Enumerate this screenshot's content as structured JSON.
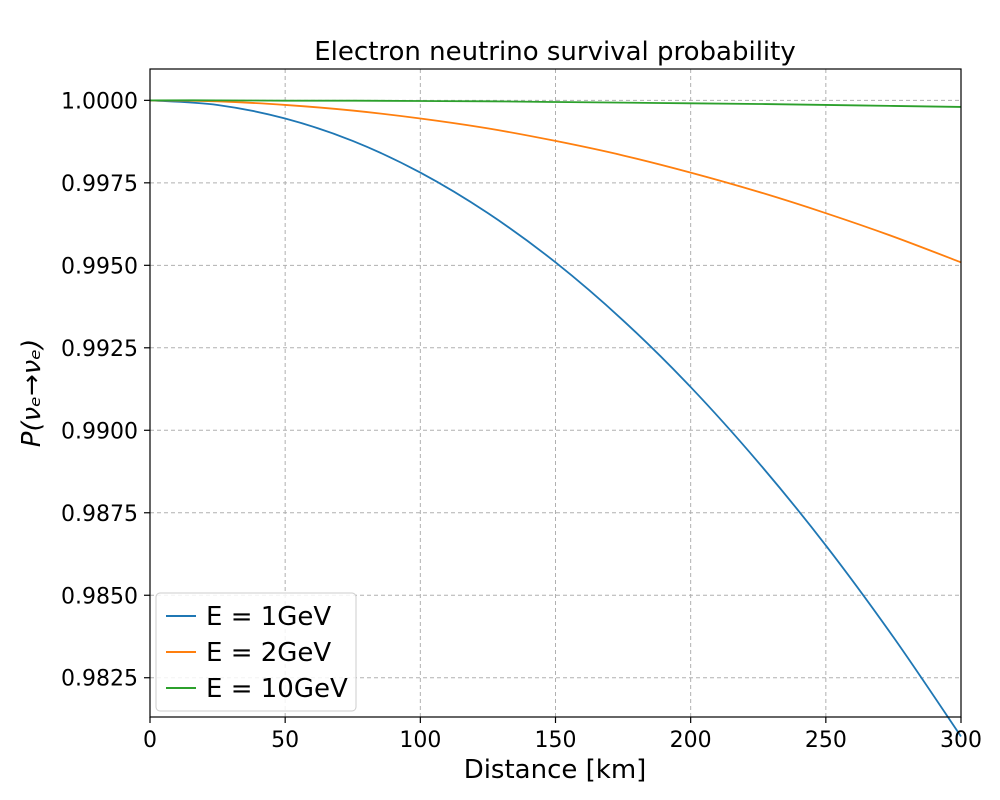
{
  "chart_data": {
    "type": "line",
    "title": "Electron neutrino survival probability",
    "xlabel": "Distance [km]",
    "ylabel": "P(νₑ→νₑ)",
    "xlim": [
      0,
      300
    ],
    "ylim": [
      0.98131,
      1.00095
    ],
    "x_ticks": [
      0,
      50,
      100,
      150,
      200,
      250,
      300
    ],
    "y_ticks": [
      0.9825,
      0.985,
      0.9875,
      0.99,
      0.9925,
      0.995,
      0.9975,
      1.0
    ],
    "y_tick_decimals": 4,
    "grid": true,
    "legend_position": "lower-left",
    "x": [
      0,
      25,
      50,
      75,
      100,
      125,
      150,
      175,
      200,
      225,
      250,
      275,
      300
    ],
    "series": [
      {
        "name": "E = 1GeV",
        "color": "#1f77b4",
        "values": [
          1.0,
          0.99986,
          0.99945,
          0.99877,
          0.99781,
          0.99658,
          0.99509,
          0.99333,
          0.99131,
          0.98903,
          0.98651,
          0.98373,
          0.98072
        ]
      },
      {
        "name": "E = 2GeV",
        "color": "#ff7f0e",
        "values": [
          1.0,
          0.99997,
          0.99986,
          0.99969,
          0.99945,
          0.99915,
          0.99877,
          0.99833,
          0.99781,
          0.99723,
          0.99658,
          0.99587,
          0.99509
        ]
      },
      {
        "name": "E = 10GeV",
        "color": "#2ca02c",
        "values": [
          1.0,
          1.0,
          0.99999,
          0.99999,
          0.99998,
          0.99997,
          0.99995,
          0.99993,
          0.99991,
          0.99989,
          0.99986,
          0.99983,
          0.9998
        ]
      }
    ]
  }
}
